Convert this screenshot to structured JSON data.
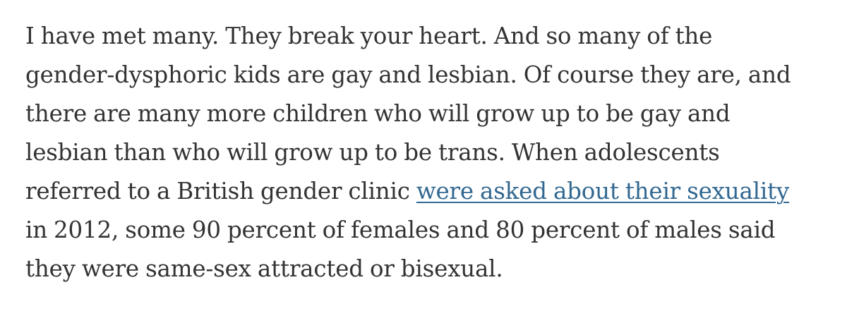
{
  "article": {
    "lines": [
      "I have met many. They break your heart. And so many of the",
      "gender-dysphoric kids are gay and lesbian. Of course they are, and",
      "there are many more children who will grow up to be gay and",
      "lesbian than who will grow up to be trans. When adolescents",
      "referred to a British gender clinic ",
      "in 2012, some 90 percent of females and 80 percent of males said",
      "they were same-sex attracted or bisexual."
    ],
    "link_text": "were asked about their sexuality"
  },
  "colors": {
    "text": "#333333",
    "link": "#326891",
    "background": "#ffffff"
  }
}
